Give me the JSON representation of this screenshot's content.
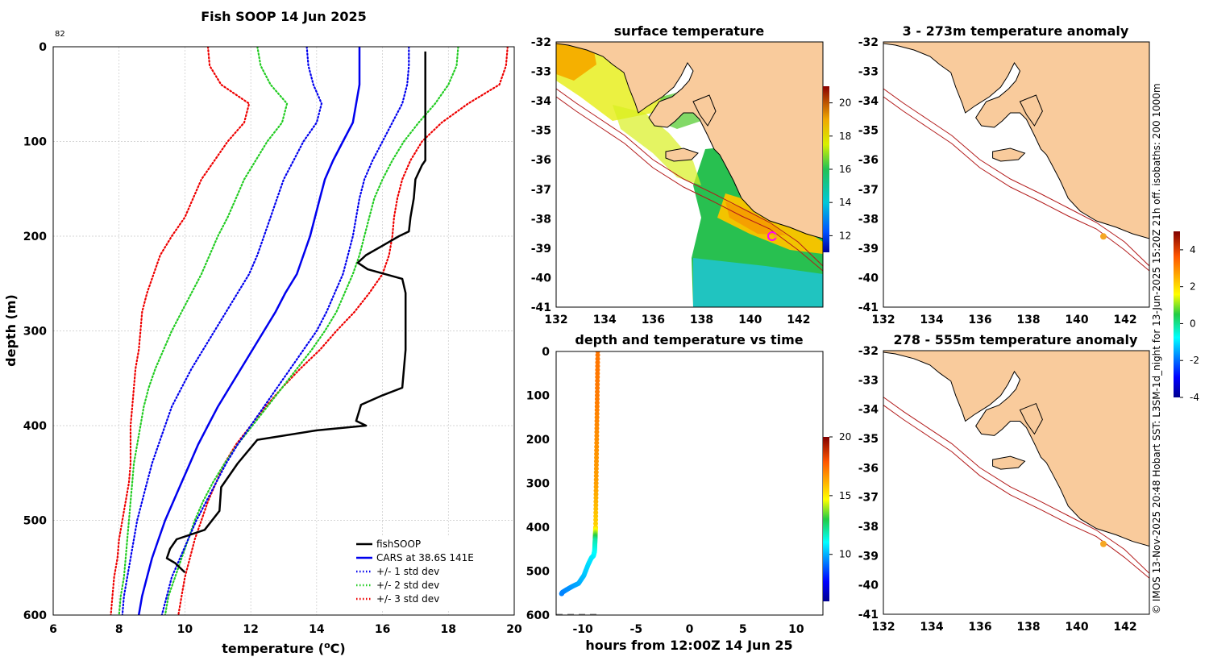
{
  "credit": "© IMOS 13-Nov-2025 20:48 Hobart SST: L3SM-1d_night for 13-Jun-2025 15:20Z 21h off. isobaths: 200  1000m",
  "colors": {
    "fish": "#000000",
    "cars": "#0000ee",
    "std1": "#0000ee",
    "std2": "#22cc22",
    "std3": "#ee0000",
    "land": "#f9cb9c",
    "iso": "#b21a1a",
    "marker_orange": "#f5a623",
    "marker_magenta": "#ff00ff"
  },
  "chart_data": [
    {
      "id": "profile",
      "type": "line",
      "title": "Fish SOOP 14 Jun 2025",
      "corner_label": "82",
      "xlabel_main": "temperature (",
      "xlabel_sup": "o",
      "xlabel_end": "C)",
      "ylabel": "depth (m)",
      "xlim": [
        6,
        20
      ],
      "ylim": [
        600,
        0
      ],
      "xticks": [
        6,
        8,
        10,
        12,
        14,
        16,
        18,
        20
      ],
      "yticks": [
        0,
        100,
        200,
        300,
        400,
        500,
        600
      ],
      "xtick_labels": [
        "6",
        "8",
        "10",
        "12",
        "14",
        "16",
        "18",
        "20"
      ],
      "ytick_labels": [
        "0",
        "100",
        "200",
        "300",
        "400",
        "500",
        "600"
      ],
      "legend": [
        "fishSOOP",
        "CARS at 38.6S 141E",
        "+/- 1 std dev",
        "+/- 2 std dev",
        "+/- 3 std dev"
      ],
      "depths": [
        0,
        20,
        40,
        60,
        80,
        100,
        120,
        140,
        160,
        180,
        200,
        220,
        240,
        260,
        280,
        300,
        320,
        340,
        360,
        380,
        400,
        420,
        440,
        460,
        480,
        500,
        520,
        540,
        560,
        580,
        600
      ],
      "cars": [
        15.3,
        15.3,
        15.3,
        15.2,
        15.1,
        14.8,
        14.5,
        14.25,
        14.1,
        13.95,
        13.8,
        13.6,
        13.4,
        13.05,
        12.75,
        12.4,
        12.05,
        11.7,
        11.35,
        11.0,
        10.7,
        10.4,
        10.15,
        9.9,
        9.65,
        9.4,
        9.2,
        9.0,
        8.85,
        8.7,
        8.6
      ],
      "minus1": [
        13.7,
        13.75,
        13.9,
        14.15,
        14.0,
        13.6,
        13.3,
        13.0,
        12.8,
        12.6,
        12.4,
        12.2,
        11.95,
        11.6,
        11.25,
        10.9,
        10.55,
        10.2,
        9.9,
        9.6,
        9.4,
        9.2,
        9.0,
        8.85,
        8.7,
        8.55,
        8.45,
        8.35,
        8.25,
        8.15,
        8.1
      ],
      "plus1": [
        16.8,
        16.8,
        16.75,
        16.6,
        16.3,
        16.0,
        15.7,
        15.45,
        15.3,
        15.2,
        15.1,
        14.95,
        14.8,
        14.55,
        14.3,
        14.0,
        13.6,
        13.2,
        12.8,
        12.4,
        12.0,
        11.6,
        11.25,
        10.95,
        10.65,
        10.35,
        10.1,
        9.85,
        9.6,
        9.45,
        9.3
      ],
      "minus2": [
        12.2,
        12.3,
        12.6,
        13.1,
        12.95,
        12.5,
        12.15,
        11.8,
        11.55,
        11.3,
        11.0,
        10.75,
        10.5,
        10.2,
        9.9,
        9.6,
        9.35,
        9.1,
        8.9,
        8.75,
        8.65,
        8.55,
        8.45,
        8.4,
        8.35,
        8.3,
        8.25,
        8.2,
        8.15,
        8.05,
        8.0
      ],
      "plus2": [
        18.3,
        18.25,
        18.0,
        17.6,
        17.1,
        16.65,
        16.3,
        16.0,
        15.75,
        15.6,
        15.45,
        15.3,
        15.1,
        14.85,
        14.6,
        14.25,
        13.85,
        13.4,
        12.95,
        12.5,
        12.05,
        11.6,
        11.2,
        10.85,
        10.55,
        10.3,
        10.1,
        9.9,
        9.7,
        9.5,
        9.4
      ],
      "minus3": [
        10.7,
        10.75,
        11.1,
        11.95,
        11.8,
        11.3,
        10.9,
        10.5,
        10.25,
        10.0,
        9.6,
        9.25,
        9.05,
        8.85,
        8.7,
        8.65,
        8.6,
        8.5,
        8.45,
        8.4,
        8.35,
        8.35,
        8.35,
        8.3,
        8.2,
        8.1,
        8.0,
        7.95,
        7.85,
        7.8,
        7.75
      ],
      "plus3": [
        19.8,
        19.75,
        19.55,
        18.6,
        17.8,
        17.2,
        16.85,
        16.6,
        16.45,
        16.35,
        16.3,
        16.2,
        16.0,
        15.6,
        15.15,
        14.6,
        14.1,
        13.5,
        12.95,
        12.45,
        12.0,
        11.55,
        11.2,
        10.95,
        10.7,
        10.5,
        10.3,
        10.15,
        10.0,
        9.9,
        9.8
      ],
      "fish_depth": [
        5,
        100,
        120,
        125,
        140,
        160,
        180,
        195,
        200,
        210,
        220,
        228,
        235,
        245,
        260,
        320,
        360,
        368,
        378,
        395,
        400,
        405,
        415,
        440,
        460,
        465,
        490,
        510,
        520,
        530,
        540,
        545,
        555
      ],
      "fish_temp": [
        17.3,
        17.3,
        17.3,
        17.2,
        17.0,
        16.95,
        16.85,
        16.8,
        16.5,
        16.0,
        15.5,
        15.25,
        15.55,
        16.6,
        16.7,
        16.7,
        16.6,
        16.0,
        15.35,
        15.2,
        15.5,
        14.0,
        12.2,
        11.6,
        11.2,
        11.1,
        11.05,
        10.6,
        9.75,
        9.55,
        9.45,
        9.7,
        10.0
      ]
    },
    {
      "id": "sst_map",
      "type": "heatmap",
      "title": "surface temperature",
      "xlim": [
        132,
        143
      ],
      "ylim": [
        -41,
        -32
      ],
      "xtick_labels": [
        "132",
        "134",
        "136",
        "138",
        "140",
        "142"
      ],
      "ytick_labels": [
        "-32",
        "-33",
        "-34",
        "-35",
        "-36",
        "-37",
        "-38",
        "-39",
        "-40",
        "-41"
      ],
      "colorbar_range": [
        11,
        21
      ],
      "colorbar_ticks": [
        "20",
        "18",
        "16",
        "14",
        "12"
      ]
    },
    {
      "id": "depth_time",
      "type": "scatter",
      "title": "depth and temperature vs time",
      "xlabel": "hours from 12:00Z 14 Jun 25",
      "xlim": [
        -12.5,
        12.5
      ],
      "ylim": [
        600,
        0
      ],
      "xtick_labels": [
        "-10",
        "-5",
        "0",
        "5",
        "10"
      ],
      "ytick_labels": [
        "0",
        "100",
        "200",
        "300",
        "400",
        "500",
        "600"
      ],
      "colorbar_range": [
        6,
        20
      ],
      "colorbar_ticks": [
        "20",
        "15",
        "10"
      ],
      "time": [
        -8.6,
        -8.65,
        -8.7,
        -8.75,
        -8.8,
        -8.85,
        -8.9,
        -9.0,
        -9.2,
        -9.5,
        -9.9,
        -10.4,
        -11.0,
        -11.5,
        -11.9,
        -12.0
      ],
      "depth": [
        0,
        100,
        200,
        300,
        400,
        430,
        455,
        465,
        470,
        485,
        510,
        528,
        535,
        542,
        548,
        552
      ],
      "temp": [
        17.3,
        17.2,
        16.8,
        16.5,
        15.5,
        12.0,
        11.2,
        11.0,
        10.8,
        10.6,
        10.3,
        10.0,
        9.8,
        9.6,
        9.5,
        9.4
      ]
    },
    {
      "id": "anom_upper",
      "type": "heatmap",
      "title": "3 - 273m temperature anomaly",
      "xlim": [
        132,
        143
      ],
      "ylim": [
        -41,
        -32
      ],
      "xtick_labels": [
        "132",
        "134",
        "136",
        "138",
        "140",
        "142"
      ],
      "ytick_labels": [
        "-32",
        "-33",
        "-34",
        "-35",
        "-36",
        "-37",
        "-38",
        "-39",
        "-40",
        "-41"
      ],
      "colorbar_range": [
        -4,
        5
      ],
      "colorbar_ticks": [
        "4",
        "2",
        "0",
        "-2",
        "-4"
      ],
      "marker": {
        "lon": 141.1,
        "lat": -38.6
      }
    },
    {
      "id": "anom_lower",
      "type": "heatmap",
      "title": "278 - 555m temperature anomaly",
      "xlim": [
        132,
        143
      ],
      "ylim": [
        -41,
        -32
      ],
      "xtick_labels": [
        "132",
        "134",
        "136",
        "138",
        "140",
        "142"
      ],
      "ytick_labels": [
        "-32",
        "-33",
        "-34",
        "-35",
        "-36",
        "-37",
        "-38",
        "-39",
        "-40",
        "-41"
      ],
      "marker": {
        "lon": 141.1,
        "lat": -38.6
      }
    }
  ]
}
